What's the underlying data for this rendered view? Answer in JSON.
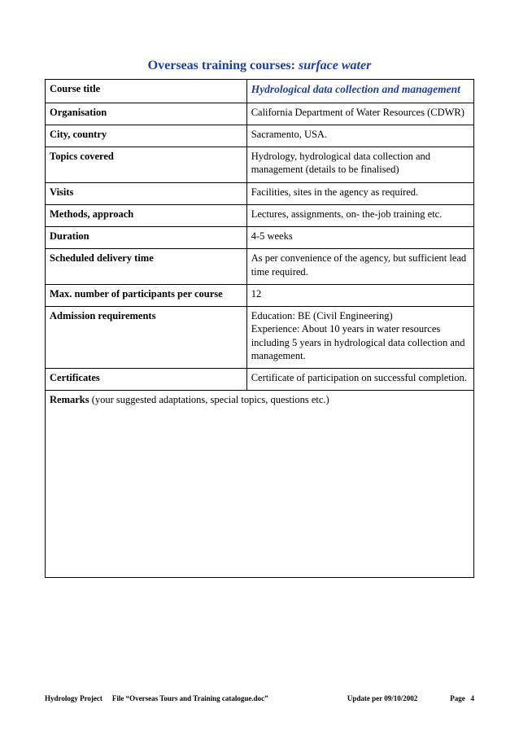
{
  "title": {
    "prefix": "Overseas training courses: ",
    "suffix": "surface water"
  },
  "rows": [
    {
      "label": "Course title",
      "value": "Hydrological data collection and management",
      "highlight": true
    },
    {
      "label": "Organisation",
      "value": "California Department of Water Resources (CDWR)"
    },
    {
      "label": "City, country",
      "value": "Sacramento, USA."
    },
    {
      "label": "Topics covered",
      "value": "Hydrology, hydrological data collection and management (details to be finalised)"
    },
    {
      "label": "Visits",
      "value": "Facilities, sites in the agency as required."
    },
    {
      "label": "Methods, approach",
      "value": "Lectures, assignments, on- the-job training etc."
    },
    {
      "label": "Duration",
      "value": "4-5 weeks"
    },
    {
      "label": "Scheduled delivery time",
      "value": "As per convenience of the agency, but sufficient lead time required."
    },
    {
      "label": "Max. number of participants per course",
      "value": "   12"
    },
    {
      "label": "Admission requirements",
      "value": "Education: BE (Civil Engineering)\nExperience: About 10 years in water resources including 5 years in hydrological data collection and management."
    },
    {
      "label": "Certificates",
      "value": "Certificate of participation on successful completion."
    }
  ],
  "remarks": {
    "label": "Remarks",
    "hint": " (your suggested adaptations, special topics, questions etc.)"
  },
  "footer": {
    "project": "Hydrology Project",
    "file": "File  “Overseas Tours and Training catalogue.doc”",
    "update": "Update per 09/10/2002",
    "page_label": "Page",
    "page_num": "4"
  },
  "colors": {
    "accent": "#1f3f9c",
    "border": "#000000",
    "background": "#ffffff"
  }
}
